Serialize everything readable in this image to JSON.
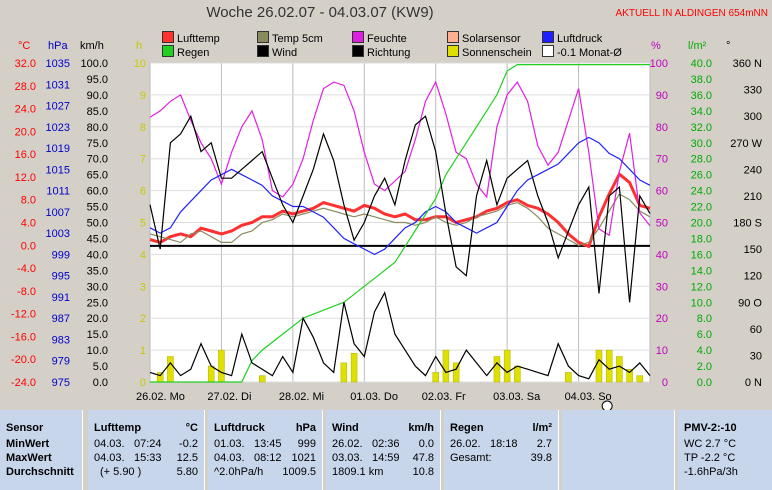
{
  "header": {
    "title": "Woche 26.02.07 - 04.03.07 (KW9)",
    "alert": "AKTUELL IN ALDINGEN 654mNN"
  },
  "axis_headers": {
    "temp": "°C",
    "pressure": "hPa",
    "wind": "km/h",
    "sun": "h",
    "humidity": "%",
    "rain": "l/m²",
    "direction": "°"
  },
  "legend": [
    {
      "label": "Lufttemp",
      "color": "#ff3030"
    },
    {
      "label": "Temp 5cm",
      "color": "#8a8a60"
    },
    {
      "label": "Feuchte",
      "color": "#e020e0"
    },
    {
      "label": "Solarsensor",
      "color": "#ffb090"
    },
    {
      "label": "Luftdruck",
      "color": "#2020ff"
    },
    {
      "label": "Regen",
      "color": "#20d020"
    },
    {
      "label": "Wind",
      "color": "#000000"
    },
    {
      "label": "Richtung",
      "color": "#000000"
    },
    {
      "label": "Sonnenschein",
      "color": "#e0e000"
    },
    {
      "label": "-0.1 Monat-Ø",
      "color": "#ffffff"
    }
  ],
  "chart_data": {
    "type": "line",
    "x_labels": [
      "26.02. Mo",
      "27.02. Di",
      "28.02. Mi",
      "01.03. Do",
      "02.03. Fr",
      "03.03. Sa",
      "04.03. So"
    ],
    "axes": {
      "temp": {
        "ticks": [
          "32.0",
          "28.0",
          "24.0",
          "20.0",
          "16.0",
          "12.0",
          "8.0",
          "4.0",
          "0.0",
          "-4.0",
          "-8.0",
          "-12.0",
          "-16.0",
          "-20.0",
          "-24.0"
        ],
        "color": "#ff0000",
        "range": [
          -24,
          32
        ]
      },
      "pressure": {
        "ticks": [
          "1035",
          "1031",
          "1027",
          "1023",
          "1019",
          "1015",
          "1011",
          "1007",
          "1003",
          "999",
          "995",
          "991",
          "987",
          "983",
          "979",
          "975"
        ],
        "color": "#0000cc",
        "range": [
          975,
          1035
        ]
      },
      "wind": {
        "ticks": [
          "100.0",
          "95.0",
          "90.0",
          "85.0",
          "80.0",
          "75.0",
          "70.0",
          "65.0",
          "60.0",
          "55.0",
          "50.0",
          "45.0",
          "40.0",
          "35.0",
          "30.0",
          "25.0",
          "20.0",
          "15.0",
          "10.0",
          "5.0",
          "0.0"
        ],
        "color": "#000000",
        "range": [
          0,
          100
        ]
      },
      "sun": {
        "ticks": [
          "10",
          "9",
          "8",
          "7",
          "6",
          "5",
          "4",
          "3",
          "2",
          "1",
          "0"
        ],
        "color": "#c8c800",
        "range": [
          0,
          10
        ]
      },
      "humidity": {
        "ticks": [
          "100",
          "90",
          "80",
          "70",
          "60",
          "50",
          "40",
          "30",
          "20",
          "10",
          "0"
        ],
        "color": "#c000c0",
        "range": [
          0,
          100
        ]
      },
      "rain": {
        "ticks": [
          "40.0",
          "38.0",
          "36.0",
          "34.0",
          "32.0",
          "30.0",
          "28.0",
          "26.0",
          "24.0",
          "22.0",
          "20.0",
          "18.0",
          "16.0",
          "14.0",
          "12.0",
          "10.0",
          "8.0",
          "6.0",
          "4.0",
          "2.0",
          "0.0"
        ],
        "color": "#00aa00",
        "range": [
          0,
          40
        ]
      },
      "direction": {
        "ticks": [
          "360 N",
          "330",
          "300",
          "270 W",
          "240",
          "210",
          "180 S",
          "150",
          "120",
          "90 O",
          "60",
          "30",
          "0   N"
        ],
        "color": "#000000",
        "range": [
          0,
          360
        ]
      }
    },
    "series": [
      {
        "name": "Lufttemp",
        "axis": "temp",
        "color": "#ff3030",
        "values": [
          1,
          0.5,
          1.5,
          2,
          1.5,
          3,
          2.5,
          2,
          2.5,
          3.5,
          4,
          5,
          5,
          6,
          5.5,
          6,
          6.5,
          7.5,
          7,
          6.5,
          6,
          7,
          6.5,
          5.5,
          5,
          5.5,
          4.5,
          4.5,
          5,
          5,
          4,
          4.5,
          5,
          6,
          6.5,
          7.5,
          8,
          7,
          6.5,
          5.5,
          4,
          2,
          0.5,
          -0.2,
          5,
          9,
          12.5,
          11,
          7,
          6.5
        ]
      },
      {
        "name": "Temp 5cm",
        "axis": "temp",
        "color": "#8a8a60",
        "values": [
          2,
          1.5,
          1,
          0.5,
          2,
          2.5,
          1.5,
          0.5,
          0.5,
          2,
          2.5,
          4,
          4.5,
          5.5,
          5,
          5.5,
          6,
          6.5,
          6,
          5.5,
          5,
          5.5,
          5,
          4.5,
          4,
          4,
          3.5,
          4,
          5,
          4,
          3.5,
          4,
          5,
          5.5,
          6,
          7,
          7.5,
          6.5,
          5,
          3,
          2,
          1,
          0,
          0.5,
          3,
          6,
          9,
          8,
          6,
          5
        ]
      },
      {
        "name": "Feuchte",
        "axis": "humidity",
        "color": "#e020e0",
        "values": [
          83,
          85,
          88,
          90,
          82,
          75,
          70,
          62,
          72,
          80,
          85,
          76,
          60,
          58,
          62,
          70,
          82,
          92,
          94,
          93,
          85,
          72,
          62,
          60,
          63,
          66,
          76,
          88,
          94,
          84,
          72,
          70,
          62,
          58,
          80,
          90,
          94,
          88,
          74,
          68,
          72,
          82,
          92,
          72,
          48,
          46,
          66,
          78,
          53,
          49
        ]
      },
      {
        "name": "Luftdruck",
        "axis": "pressure",
        "color": "#2020ff",
        "values": [
          1004,
          1003,
          1004,
          1007,
          1009,
          1011,
          1013,
          1014,
          1015,
          1014,
          1013,
          1012,
          1010,
          1009,
          1008,
          1008,
          1007,
          1006,
          1004,
          1002,
          1001,
          1000,
          999,
          1000,
          1002,
          1004,
          1005,
          1007,
          1008,
          1007,
          1005,
          1004,
          1003,
          1004,
          1005,
          1008,
          1011,
          1013,
          1014,
          1015,
          1016,
          1018,
          1020,
          1021,
          1020,
          1018,
          1017,
          1015,
          1013,
          1012
        ]
      },
      {
        "name": "Regen",
        "axis": "rain",
        "color": "#20d020",
        "values": [
          0,
          0,
          0,
          0,
          0,
          0,
          0,
          0,
          0,
          0,
          2.7,
          4,
          5,
          6,
          7,
          8,
          8.5,
          9,
          9.5,
          10,
          11,
          12,
          13,
          14,
          15,
          17,
          19,
          21,
          23,
          26,
          28,
          30,
          32,
          34,
          36,
          39,
          39.8,
          39.8,
          39.8,
          39.8,
          39.8,
          39.8,
          39.8,
          39.8,
          39.8,
          39.8,
          39.8,
          39.8,
          39.8,
          39.8
        ]
      },
      {
        "name": "Wind",
        "axis": "wind",
        "color": "#000000",
        "values": [
          3,
          2,
          6,
          2,
          4,
          12,
          5,
          3,
          2,
          15,
          6,
          4,
          2,
          8,
          3,
          20,
          14,
          6,
          3,
          25,
          12,
          8,
          22,
          28,
          15,
          10,
          5,
          2,
          8,
          3,
          4,
          10,
          6,
          2,
          6,
          3,
          5,
          4,
          3,
          2,
          12,
          5,
          2,
          1,
          7,
          4,
          5,
          3,
          6,
          2
        ]
      },
      {
        "name": "Richtung",
        "axis": "direction",
        "color": "#000000",
        "values": [
          200,
          150,
          270,
          280,
          300,
          260,
          270,
          230,
          230,
          240,
          250,
          260,
          230,
          200,
          180,
          210,
          240,
          280,
          250,
          200,
          160,
          180,
          210,
          230,
          200,
          250,
          290,
          300,
          260,
          190,
          130,
          120,
          210,
          250,
          200,
          230,
          240,
          250,
          210,
          180,
          140,
          170,
          200,
          220,
          100,
          210,
          220,
          90,
          210,
          190
        ]
      }
    ],
    "reference_line": {
      "name": "-0.1 Monat-Ø",
      "axis": "temp",
      "value": -0.1,
      "color": "#000000"
    },
    "sunshine_bars": {
      "axis": "sun",
      "color": "#e0e000",
      "values": [
        0,
        0.3,
        0.8,
        0,
        0,
        0,
        0.5,
        1,
        0,
        0,
        0,
        0.2,
        0,
        0,
        0,
        0,
        0,
        0,
        0,
        0.6,
        0.9,
        0,
        0,
        0,
        0,
        0,
        0,
        0,
        0.3,
        1,
        0.6,
        0,
        0,
        0,
        0.8,
        1,
        0.5,
        0,
        0,
        0,
        0,
        0.3,
        0,
        0,
        1,
        1,
        0.8,
        0.4,
        0.2,
        0
      ]
    }
  },
  "stats": {
    "sensor": {
      "title": "Sensor",
      "rows": [
        "MinWert",
        "MaxWert",
        "Durchschnitt"
      ]
    },
    "lufttemp": {
      "title": "Lufttemp",
      "unit": "°C",
      "rows": [
        [
          "04.03.",
          "07:24",
          "-0.2"
        ],
        [
          "04.03.",
          "15:33",
          "12.5"
        ],
        [
          "",
          "(+ 5.90 )",
          "5.80"
        ]
      ]
    },
    "luftdruck": {
      "title": "Luftdruck",
      "unit": "hPa",
      "rows": [
        [
          "01.03.",
          "13:45",
          "999"
        ],
        [
          "04.03.",
          "08:12",
          "1021"
        ],
        [
          "",
          "^2.0hPa/h",
          "1009.5"
        ]
      ]
    },
    "wind": {
      "title": "Wind",
      "unit": "km/h",
      "rows": [
        [
          "26.02.",
          "02:36",
          "0.0"
        ],
        [
          "03.03.",
          "14:59",
          "47.8"
        ],
        [
          "",
          "1809.1 km",
          "10.8"
        ]
      ]
    },
    "regen": {
      "title": "Regen",
      "unit": "l/m²",
      "rows": [
        [
          "26.02.",
          "18:18",
          "2.7"
        ],
        [
          "",
          "Gesamt:",
          "39.8"
        ]
      ]
    },
    "pmv": {
      "title": "PMV-2:-10",
      "rows": [
        "WC 2.7 °C",
        "TP -2.2 °C",
        "-1.6hPa/3h"
      ]
    }
  }
}
